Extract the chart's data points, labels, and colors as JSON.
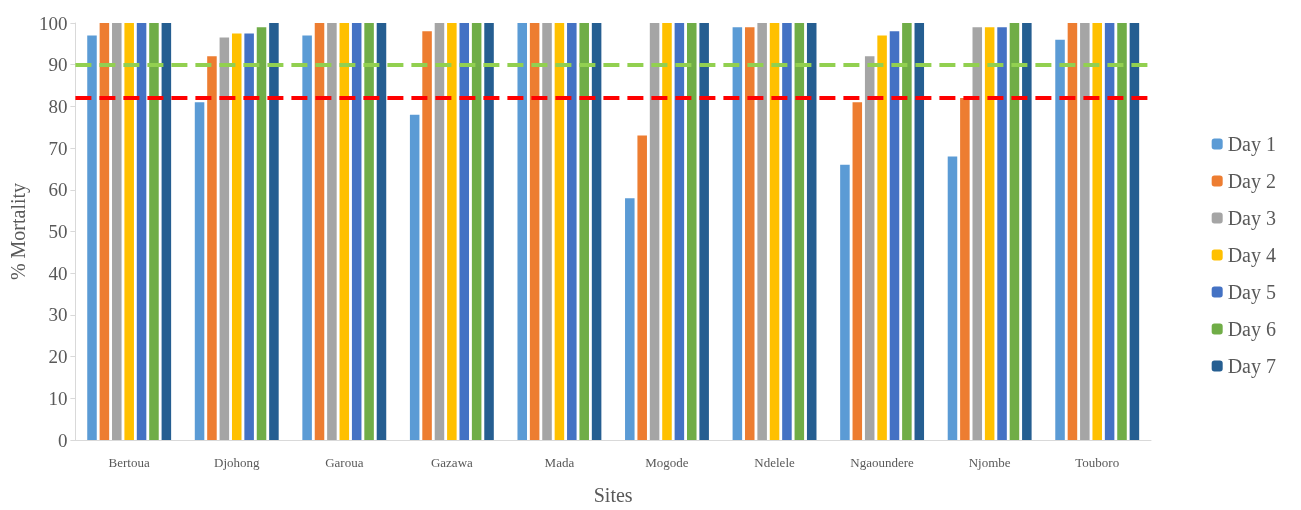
{
  "chart_data": {
    "type": "bar",
    "xlabel": "Sites",
    "ylabel": "% Mortality",
    "categories": [
      "Bertoua",
      "Djohong",
      "Garoua",
      "Gazawa",
      "Mada",
      "Mogode",
      "Ndelele",
      "Ngaoundere",
      "Njombe",
      "Touboro"
    ],
    "series": [
      {
        "name": "Day 1",
        "color": "#5b9bd5",
        "values": [
          97,
          81,
          97,
          78,
          100,
          58,
          99,
          66,
          68,
          96
        ]
      },
      {
        "name": "Day 2",
        "color": "#ed7d31",
        "values": [
          100,
          92,
          100,
          98,
          100,
          73,
          99,
          81,
          82,
          100
        ]
      },
      {
        "name": "Day 3",
        "color": "#a5a5a5",
        "values": [
          100,
          96.5,
          100,
          100,
          100,
          100,
          100,
          92,
          99,
          100
        ]
      },
      {
        "name": "Day 4",
        "color": "#ffc000",
        "values": [
          100,
          97.5,
          100,
          100,
          100,
          100,
          100,
          97,
          99,
          100
        ]
      },
      {
        "name": "Day 5",
        "color": "#4472c4",
        "values": [
          100,
          97.5,
          100,
          100,
          100,
          100,
          100,
          98,
          99,
          100
        ]
      },
      {
        "name": "Day 6",
        "color": "#70ad47",
        "values": [
          100,
          99,
          100,
          100,
          100,
          100,
          100,
          100,
          100,
          100
        ]
      },
      {
        "name": "Day 7",
        "color": "#255e91",
        "values": [
          100,
          100,
          100,
          100,
          100,
          100,
          100,
          100,
          100,
          100
        ]
      }
    ],
    "ylim": [
      0,
      100
    ],
    "yticks": [
      0,
      10,
      20,
      30,
      40,
      50,
      60,
      70,
      80,
      90,
      100
    ],
    "ref_lines": [
      {
        "axis": "y",
        "value": 90,
        "color": "#92d050",
        "line_style": "dashed"
      },
      {
        "axis": "y",
        "value": 82,
        "color": "#ff0000",
        "line_style": "dashed"
      }
    ],
    "grid": false,
    "legend": "right"
  }
}
